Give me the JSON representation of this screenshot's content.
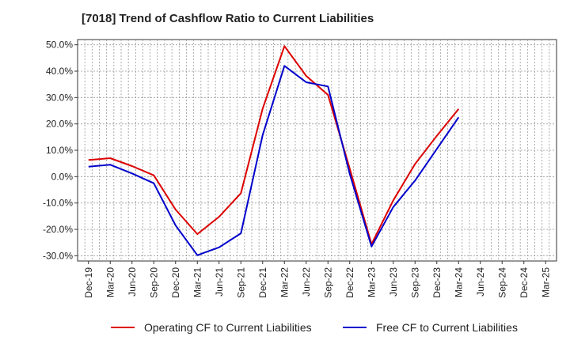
{
  "chart_data": {
    "type": "line",
    "title": "[7018]  Trend of Cashflow Ratio to Current Liabilities",
    "xlabel": "",
    "ylabel": "",
    "categories": [
      "Dec-19",
      "Mar-20",
      "Jun-20",
      "Sep-20",
      "Dec-20",
      "Mar-21",
      "Jun-21",
      "Sep-21",
      "Dec-21",
      "Mar-22",
      "Jun-22",
      "Sep-22",
      "Dec-22",
      "Mar-23",
      "Jun-23",
      "Sep-23",
      "Dec-23",
      "Mar-24",
      "Jun-24",
      "Sep-24",
      "Dec-24",
      "Mar-25"
    ],
    "y_ticks": [
      "50.0%",
      "40.0%",
      "30.0%",
      "20.0%",
      "10.0%",
      "0.0%",
      "-10.0%",
      "-20.0%",
      "-30.0%"
    ],
    "ylim": [
      -32,
      52
    ],
    "grid": true,
    "legend_position": "bottom",
    "series": [
      {
        "name": "Operating CF to Current Liabilities",
        "color": "#dd0000",
        "values": [
          6.3,
          7.0,
          4.0,
          0.5,
          -12.5,
          -21.8,
          -15.2,
          -6.3,
          25.8,
          49.5,
          38.2,
          31.0,
          3.0,
          -25.6,
          -9.0,
          4.8,
          15.5,
          25.7,
          null,
          null,
          null,
          null
        ]
      },
      {
        "name": "Free CF to Current Liabilities",
        "color": "#0000cc",
        "values": [
          3.8,
          4.5,
          1.2,
          -2.5,
          -18.5,
          -29.8,
          -26.8,
          -21.5,
          15.8,
          42.0,
          35.8,
          34.2,
          1.0,
          -26.5,
          -11.5,
          -1.5,
          10.5,
          22.5,
          null,
          null,
          null,
          null
        ]
      }
    ]
  }
}
